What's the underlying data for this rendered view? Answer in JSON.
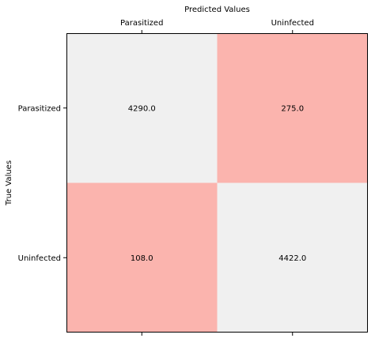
{
  "chart_data": {
    "type": "heatmap",
    "title": "",
    "xlabel": "Predicted Values",
    "ylabel": "True Values",
    "x_tick_position": "top",
    "x_categories": [
      "Parasitized",
      "Uninfected"
    ],
    "y_categories": [
      "Parasitized",
      "Uninfected"
    ],
    "cells": [
      {
        "row": 0,
        "col": 0,
        "value": 4290.0,
        "label": "4290.0",
        "color": "#f0f0f0"
      },
      {
        "row": 0,
        "col": 1,
        "value": 275.0,
        "label": "275.0",
        "color": "#fbb4ae"
      },
      {
        "row": 1,
        "col": 0,
        "value": 108.0,
        "label": "108.0",
        "color": "#fbb4ae"
      },
      {
        "row": 1,
        "col": 1,
        "value": 4422.0,
        "label": "4422.0",
        "color": "#f0f0f0"
      }
    ],
    "grid": false,
    "legend": "none"
  }
}
